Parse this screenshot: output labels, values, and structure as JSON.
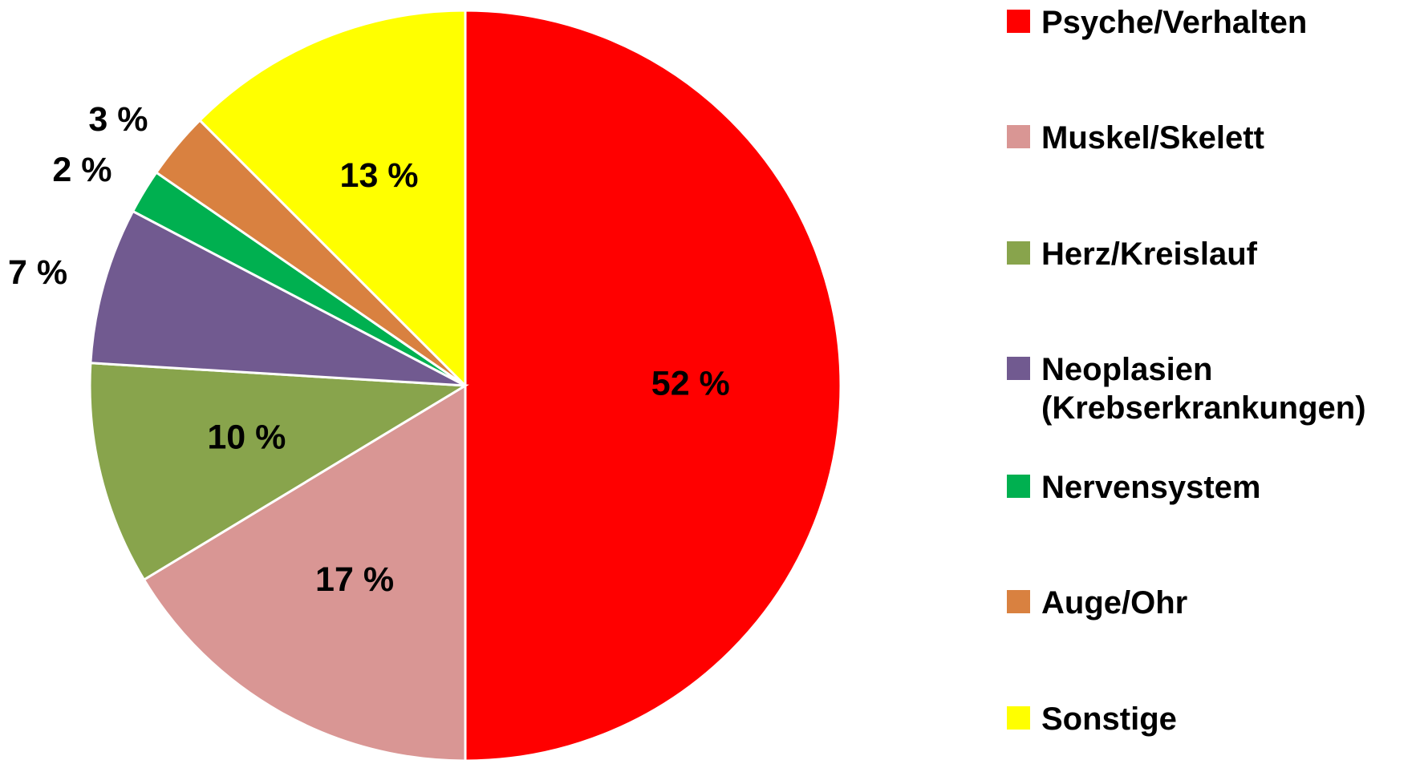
{
  "chart_data": {
    "type": "pie",
    "categories": [
      "Psyche/Verhalten",
      "Muskel/Skelett",
      "Herz/Kreislauf",
      "Neoplasien (Krebserkrankungen)",
      "Nervensystem",
      "Auge/Ohr",
      "Sonstige"
    ],
    "values": [
      52,
      17,
      10,
      7,
      2,
      3,
      13
    ],
    "value_labels": [
      "52 %",
      "17 %",
      "10 %",
      "7 %",
      "2 %",
      "3 %",
      "13 %"
    ],
    "colors": [
      "#ff0000",
      "#d99694",
      "#88a44c",
      "#715a90",
      "#00b050",
      "#d98140",
      "#ffff00"
    ],
    "legend": "right"
  }
}
